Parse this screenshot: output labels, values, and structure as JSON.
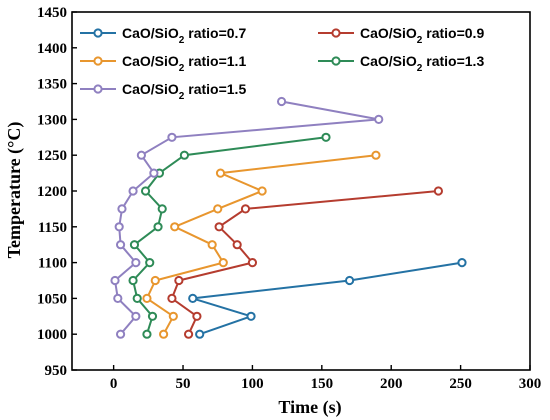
{
  "chart_data": {
    "type": "line",
    "xlabel": "Time (s)",
    "ylabel": "Temperature (°C)",
    "xlim": [
      -30,
      300
    ],
    "ylim": [
      950,
      1450
    ],
    "xticks": [
      0,
      50,
      100,
      150,
      200,
      250,
      300
    ],
    "yticks": [
      950,
      1000,
      1050,
      1100,
      1150,
      1200,
      1250,
      1300,
      1350,
      1400,
      1450
    ],
    "grid": false,
    "legend_position": "top-right",
    "series": [
      {
        "name": "CaO/SiO2 ratio=0.7",
        "label_prefix": "CaO/SiO",
        "label_sub": "2",
        "label_suffix": " ratio=0.7",
        "color": "#2472a4",
        "points": [
          [
            62,
            1000
          ],
          [
            99,
            1025
          ],
          [
            57,
            1050
          ],
          [
            170,
            1075
          ],
          [
            251,
            1100
          ]
        ]
      },
      {
        "name": "CaO/SiO2 ratio=0.9",
        "label_prefix": "CaO/SiO",
        "label_sub": "2",
        "label_suffix": " ratio=0.9",
        "color": "#b53c2f",
        "points": [
          [
            54,
            1000
          ],
          [
            60,
            1025
          ],
          [
            42,
            1050
          ],
          [
            47,
            1075
          ],
          [
            100,
            1100
          ],
          [
            89,
            1125
          ],
          [
            76,
            1150
          ],
          [
            95,
            1175
          ],
          [
            234,
            1200
          ]
        ]
      },
      {
        "name": "CaO/SiO2 ratio=1.1",
        "label_prefix": "CaO/SiO",
        "label_sub": "2",
        "label_suffix": " ratio=1.1",
        "color": "#e8962e",
        "points": [
          [
            36,
            1000
          ],
          [
            43,
            1025
          ],
          [
            24,
            1050
          ],
          [
            30,
            1075
          ],
          [
            79,
            1100
          ],
          [
            71,
            1125
          ],
          [
            44,
            1150
          ],
          [
            75,
            1175
          ],
          [
            107,
            1200
          ],
          [
            77,
            1225
          ],
          [
            189,
            1250
          ]
        ]
      },
      {
        "name": "CaO/SiO2 ratio=1.3",
        "label_prefix": "CaO/SiO",
        "label_sub": "2",
        "label_suffix": " ratio=1.3",
        "color": "#2e8b57",
        "points": [
          [
            24,
            1000
          ],
          [
            28,
            1025
          ],
          [
            17,
            1050
          ],
          [
            14,
            1075
          ],
          [
            26,
            1100
          ],
          [
            15,
            1125
          ],
          [
            32,
            1150
          ],
          [
            35,
            1175
          ],
          [
            23,
            1200
          ],
          [
            33,
            1225
          ],
          [
            51,
            1250
          ],
          [
            153,
            1275
          ]
        ]
      },
      {
        "name": "CaO/SiO2 ratio=1.5",
        "label_prefix": "CaO/SiO",
        "label_sub": "2",
        "label_suffix": " ratio=1.5",
        "color": "#8f80c0",
        "points": [
          [
            5,
            1000
          ],
          [
            16,
            1025
          ],
          [
            3,
            1050
          ],
          [
            1,
            1075
          ],
          [
            16,
            1100
          ],
          [
            5,
            1125
          ],
          [
            4,
            1150
          ],
          [
            6,
            1175
          ],
          [
            14,
            1200
          ],
          [
            29,
            1225
          ],
          [
            20,
            1250
          ],
          [
            42,
            1275
          ],
          [
            191,
            1300
          ],
          [
            121,
            1325
          ]
        ]
      }
    ]
  }
}
